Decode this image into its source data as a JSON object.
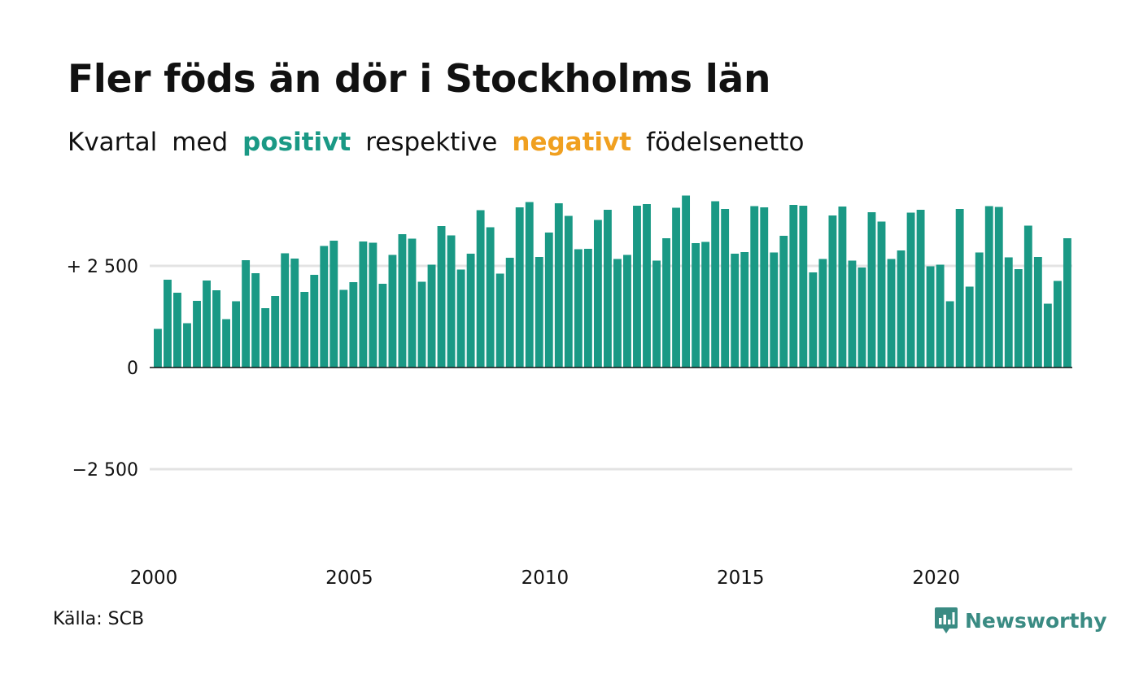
{
  "title": "Fler föds än dör i Stockholms län",
  "subtitle": {
    "part1": "Kvartal",
    "part2": "med",
    "positive": "positivt",
    "part3": "respektive",
    "negative": "negativt",
    "part4": "födelsenetto"
  },
  "source": "Källa: SCB",
  "logo": {
    "text": "Newsworthy",
    "icon": "chart-speech-bubble-icon"
  },
  "colors": {
    "positive": "#1a9985",
    "negative": "#f0a020",
    "grid": "#e3e3e3",
    "text": "#111111",
    "logo": "#3a8b83"
  },
  "chart_data": {
    "type": "bar",
    "title": "Fler föds än dör i Stockholms län",
    "xlabel": "",
    "ylabel": "",
    "ylim": [
      -5000,
      4400
    ],
    "yticks": [
      2500,
      0,
      -2500
    ],
    "ytick_labels": [
      "+ 2 500",
      "0",
      "−2 500"
    ],
    "xticks": [
      2000,
      2005,
      2010,
      2015,
      2020
    ],
    "grid": true,
    "start_quarter": "2000 Q1",
    "values": [
      950,
      2160,
      1840,
      1090,
      1640,
      2140,
      1900,
      1190,
      1630,
      2640,
      2320,
      1460,
      1760,
      2810,
      2680,
      1860,
      2280,
      2990,
      3120,
      1910,
      2100,
      3100,
      3070,
      2060,
      2770,
      3280,
      3170,
      2110,
      2530,
      3480,
      3250,
      2410,
      2800,
      3870,
      3450,
      2310,
      2700,
      3940,
      4070,
      2720,
      3320,
      4040,
      3730,
      2910,
      2920,
      3630,
      3880,
      2670,
      2770,
      3980,
      4020,
      2630,
      3180,
      3930,
      4230,
      3060,
      3090,
      4090,
      3900,
      2800,
      2840,
      3970,
      3940,
      2830,
      3240,
      4000,
      3980,
      2340,
      2670,
      3740,
      3960,
      2630,
      2460,
      3820,
      3590,
      2670,
      2880,
      3810,
      3880,
      2490,
      2530,
      1630,
      3900,
      1990,
      2830,
      3970,
      3950,
      2710,
      2420,
      3490,
      2720,
      1570,
      2130,
      3180
    ]
  }
}
